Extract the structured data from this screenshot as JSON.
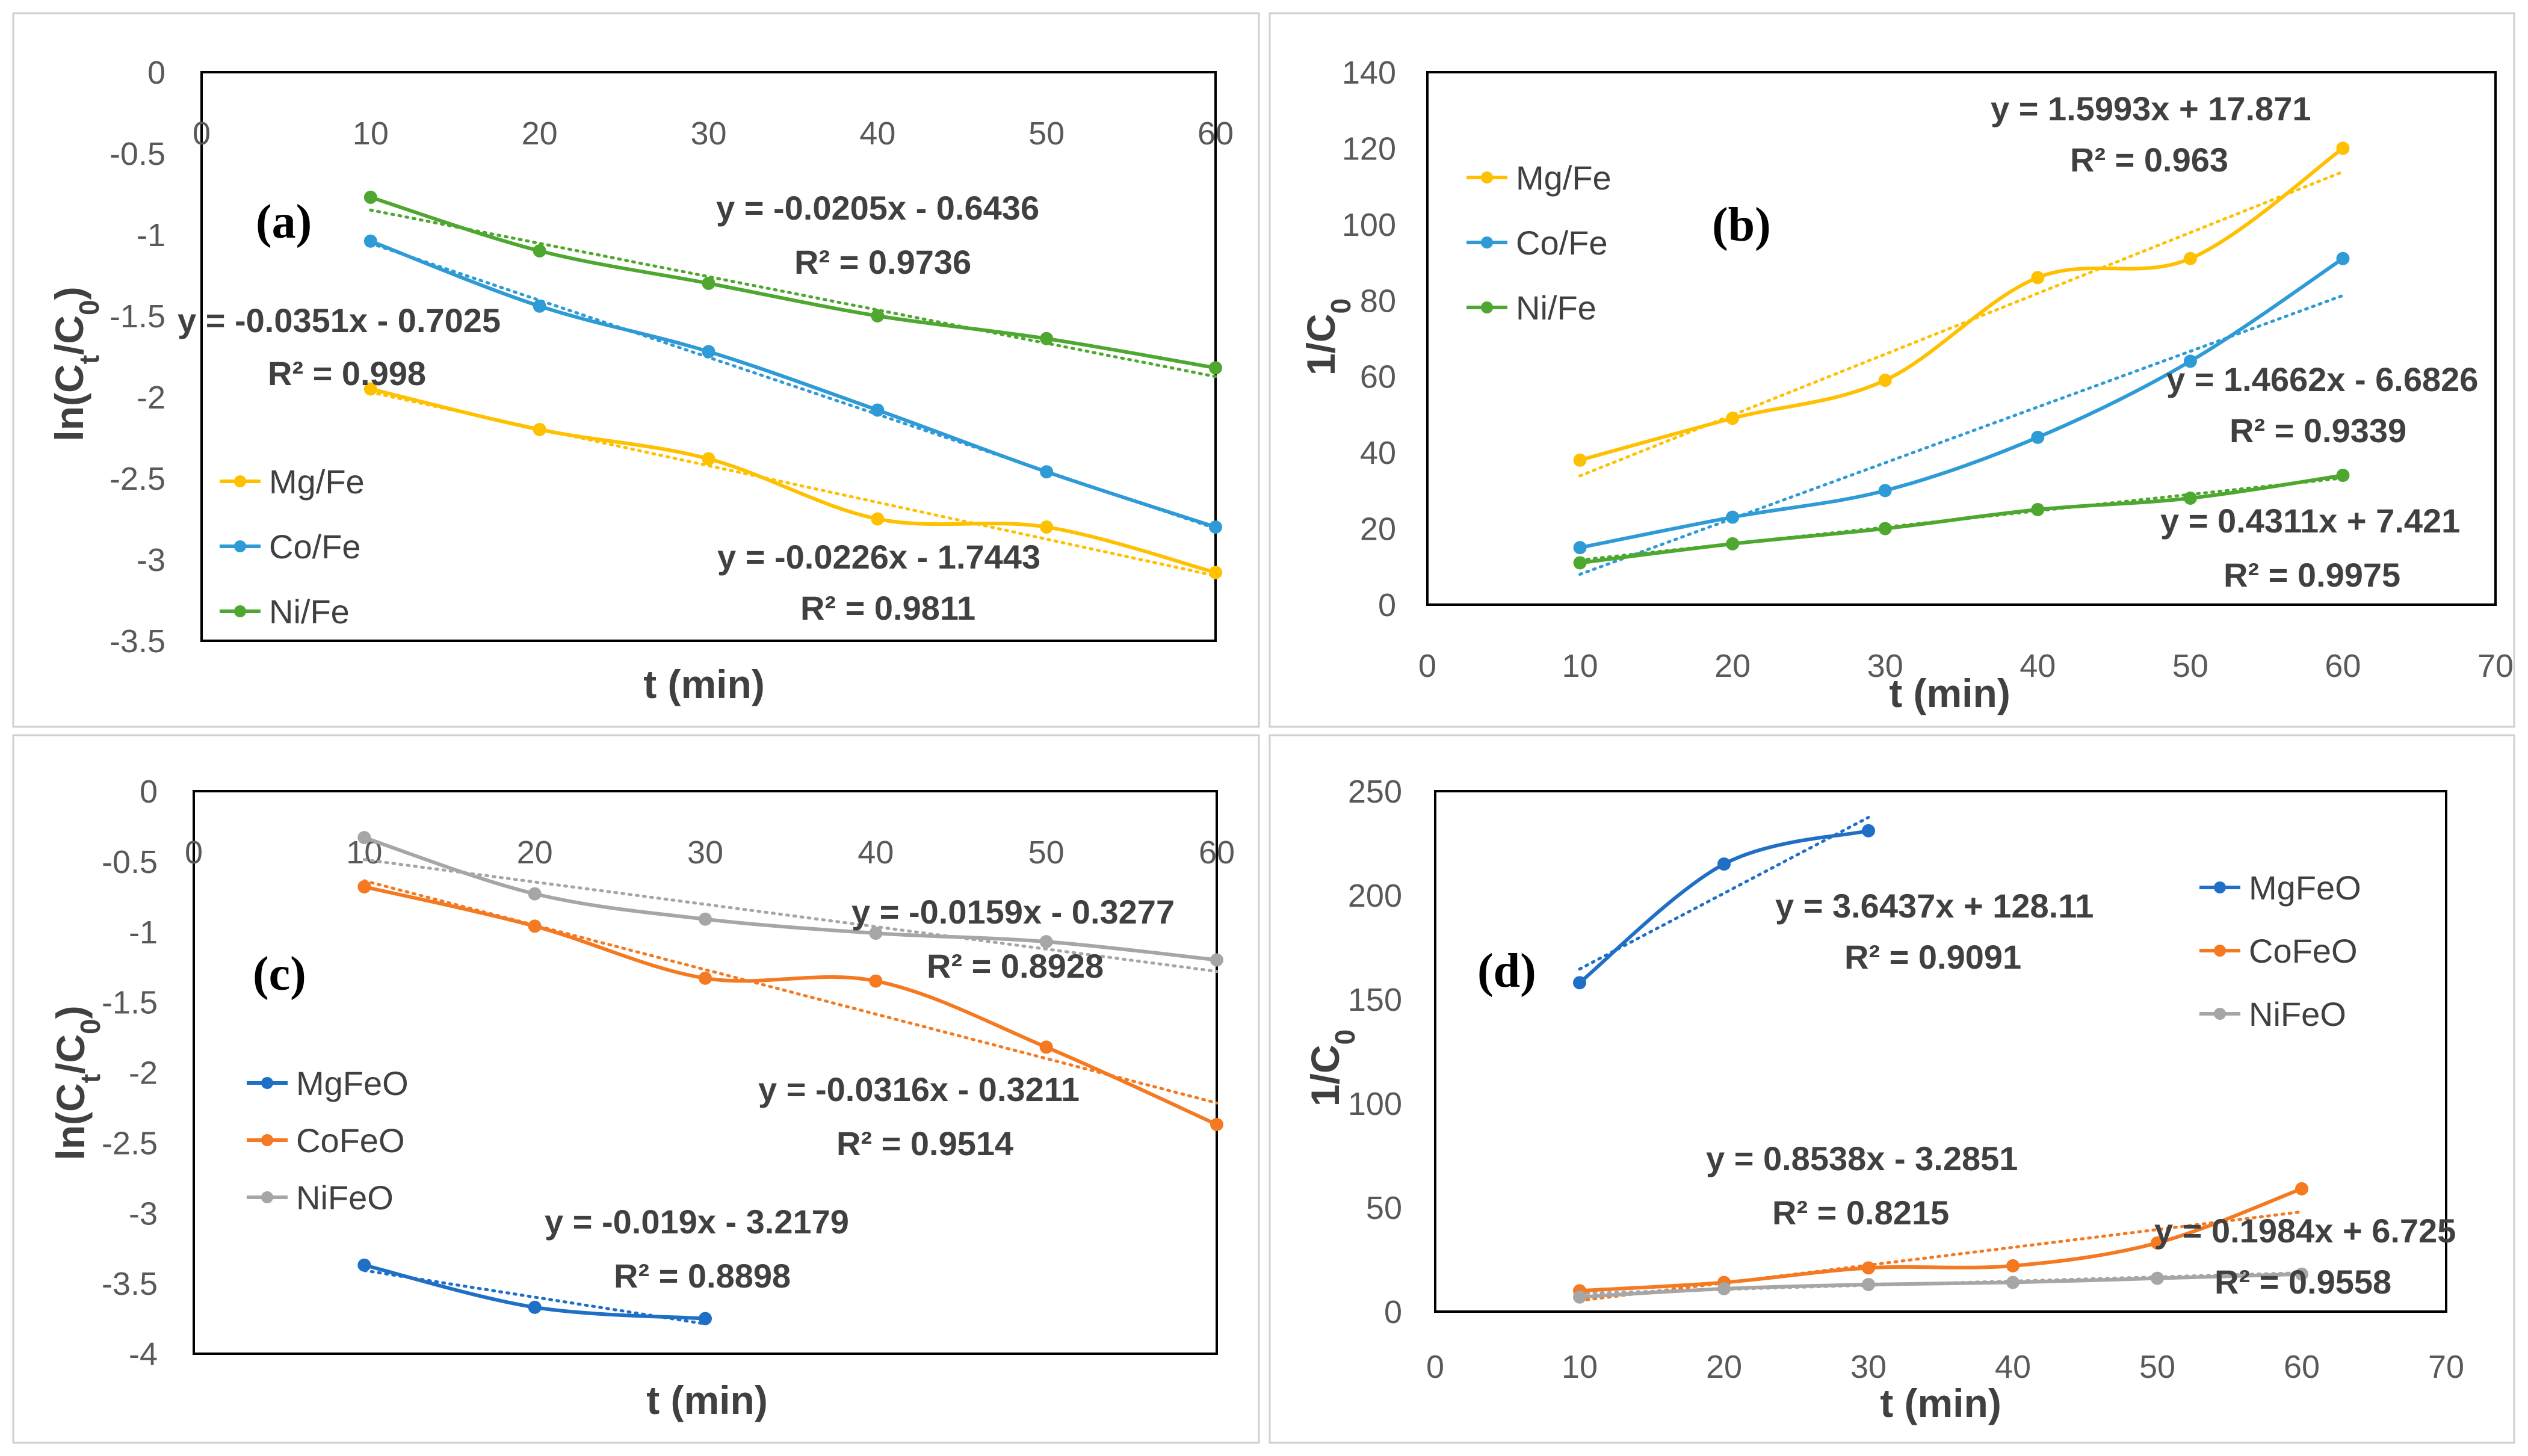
{
  "chart_data": [
    {
      "id": "a",
      "type": "line",
      "panel_label": "(a)",
      "xlabel": "t (min)",
      "ylabel": "ln(C",
      "ylabel_sub1": "t",
      "ylabel_mid": "/C",
      "ylabel_sub2": "0",
      "ylabel_end": ")",
      "xlim": [
        0,
        60
      ],
      "ylim": [
        -3.5,
        0
      ],
      "x_axis_at_top": true,
      "legend_position": "bottom-left",
      "x_ticks": [
        "0",
        "10",
        "20",
        "30",
        "40",
        "50",
        "60"
      ],
      "x_tick_values": [
        0,
        10,
        20,
        30,
        40,
        50,
        60
      ],
      "y_ticks": [
        "0",
        "-0.5",
        "-1",
        "-1.5",
        "-2",
        "-2.5",
        "-3",
        "-3.5"
      ],
      "y_tick_values": [
        0,
        -0.5,
        -1,
        -1.5,
        -2,
        -2.5,
        -3,
        -3.5
      ],
      "series": [
        {
          "name": "Mg/Fe",
          "color": "#FFC000",
          "x": [
            10,
            20,
            30,
            40,
            50,
            60
          ],
          "values": [
            -1.95,
            -2.2,
            -2.38,
            -2.75,
            -2.8,
            -3.08
          ],
          "fit": {
            "slope": -0.0226,
            "intercept": -1.7443
          }
        },
        {
          "name": "Co/Fe",
          "color": "#2E9BD6",
          "x": [
            10,
            20,
            30,
            40,
            50,
            60
          ],
          "values": [
            -1.04,
            -1.44,
            -1.72,
            -2.08,
            -2.46,
            -2.8
          ],
          "fit": {
            "slope": -0.0351,
            "intercept": -0.7025
          }
        },
        {
          "name": "Ni/Fe",
          "color": "#4EA72E",
          "x": [
            10,
            20,
            30,
            40,
            50,
            60
          ],
          "values": [
            -0.77,
            -1.1,
            -1.3,
            -1.5,
            -1.64,
            -1.82
          ],
          "fit": {
            "slope": -0.0205,
            "intercept": -0.6436
          }
        }
      ],
      "annotations": [
        {
          "eq": "y = -0.0205x - 0.6436",
          "r2": "R² = 0.9736"
        },
        {
          "eq": "y = -0.0351x - 0.7025",
          "r2": "R² = 0.998"
        },
        {
          "eq": "y = -0.0226x - 1.7443",
          "r2": "R² = 0.9811"
        }
      ]
    },
    {
      "id": "b",
      "type": "line",
      "panel_label": "(b)",
      "xlabel": "t (min)",
      "ylabel": "1/C",
      "ylabel_sub": "0",
      "xlim": [
        0,
        70
      ],
      "ylim": [
        0,
        140
      ],
      "x_axis_at_top": false,
      "legend_position": "top-left",
      "x_ticks": [
        "0",
        "10",
        "20",
        "30",
        "40",
        "50",
        "60",
        "70"
      ],
      "x_tick_values": [
        0,
        10,
        20,
        30,
        40,
        50,
        60,
        70
      ],
      "y_ticks": [
        "0",
        "20",
        "40",
        "60",
        "80",
        "100",
        "120",
        "140"
      ],
      "y_tick_values": [
        0,
        20,
        40,
        60,
        80,
        100,
        120,
        140
      ],
      "series": [
        {
          "name": "Mg/Fe",
          "color": "#FFC000",
          "x": [
            10,
            20,
            30,
            40,
            50,
            60
          ],
          "values": [
            38,
            49,
            59,
            86,
            91,
            120
          ],
          "fit": {
            "slope": 1.5993,
            "intercept": 17.871
          }
        },
        {
          "name": "Co/Fe",
          "color": "#2E9BD6",
          "x": [
            10,
            20,
            30,
            40,
            50,
            60
          ],
          "values": [
            15,
            23,
            30,
            44,
            64,
            91
          ],
          "fit": {
            "slope": 1.4662,
            "intercept": -6.6826
          }
        },
        {
          "name": "Ni/Fe",
          "color": "#4EA72E",
          "x": [
            10,
            20,
            30,
            40,
            50,
            60
          ],
          "values": [
            11,
            16,
            20,
            25,
            28,
            34
          ],
          "fit": {
            "slope": 0.4311,
            "intercept": 7.421
          }
        }
      ],
      "annotations": [
        {
          "eq": "y = 1.5993x + 17.871",
          "r2": "R² = 0.963"
        },
        {
          "eq": "y = 1.4662x - 6.6826",
          "r2": "R² = 0.9339"
        },
        {
          "eq": "y = 0.4311x + 7.421",
          "r2": "R² = 0.9975"
        }
      ]
    },
    {
      "id": "c",
      "type": "line",
      "panel_label": "(c)",
      "xlabel": "t (min)",
      "ylabel": "ln(C",
      "ylabel_sub1": "t",
      "ylabel_mid": "/C",
      "ylabel_sub2": "0",
      "ylabel_end": ")",
      "xlim": [
        0,
        60
      ],
      "ylim": [
        -4,
        0
      ],
      "x_axis_at_top": true,
      "legend_position": "left",
      "x_ticks": [
        "0",
        "10",
        "20",
        "30",
        "40",
        "50",
        "60"
      ],
      "x_tick_values": [
        0,
        10,
        20,
        30,
        40,
        50,
        60
      ],
      "y_ticks": [
        "0",
        "-0.5",
        "-1",
        "-1.5",
        "-2",
        "-2.5",
        "-3",
        "-3.5",
        "-4"
      ],
      "y_tick_values": [
        0,
        -0.5,
        -1,
        -1.5,
        -2,
        -2.5,
        -3,
        -3.5,
        -4
      ],
      "series": [
        {
          "name": "MgFeO",
          "color": "#1F6FC6",
          "x": [
            10,
            20,
            30
          ],
          "values": [
            -3.37,
            -3.67,
            -3.75
          ],
          "fit": {
            "slope": -0.019,
            "intercept": -3.2179
          }
        },
        {
          "name": "CoFeO",
          "color": "#F47920",
          "x": [
            10,
            20,
            30,
            40,
            50,
            60
          ],
          "values": [
            -0.68,
            -0.96,
            -1.33,
            -1.35,
            -1.82,
            -2.37
          ],
          "fit": {
            "slope": -0.0316,
            "intercept": -0.3211
          }
        },
        {
          "name": "NiFeO",
          "color": "#A6A6A6",
          "x": [
            10,
            20,
            30,
            40,
            50,
            60
          ],
          "values": [
            -0.33,
            -0.73,
            -0.91,
            -1.01,
            -1.07,
            -1.2
          ],
          "fit": {
            "slope": -0.0159,
            "intercept": -0.3277
          }
        }
      ],
      "annotations": [
        {
          "eq": "y = -0.0159x - 0.3277",
          "r2": "R² = 0.8928"
        },
        {
          "eq": "y = -0.0316x - 0.3211",
          "r2": "R² = 0.9514"
        },
        {
          "eq": "y = -0.019x - 3.2179",
          "r2": "R² = 0.8898"
        }
      ]
    },
    {
      "id": "d",
      "type": "line",
      "panel_label": "(d)",
      "xlabel": "t (min)",
      "ylabel": "1/C",
      "ylabel_sub": "0",
      "xlim": [
        0,
        70
      ],
      "ylim": [
        0,
        250
      ],
      "x_axis_at_top": false,
      "legend_position": "top-right",
      "x_ticks": [
        "0",
        "10",
        "20",
        "30",
        "40",
        "50",
        "60",
        "70"
      ],
      "x_tick_values": [
        0,
        10,
        20,
        30,
        40,
        50,
        60,
        70
      ],
      "y_ticks": [
        "0",
        "50",
        "100",
        "150",
        "200",
        "250"
      ],
      "y_tick_values": [
        0,
        50,
        100,
        150,
        200,
        250
      ],
      "series": [
        {
          "name": "MgFeO",
          "color": "#1F6FC6",
          "x": [
            10,
            20,
            30
          ],
          "values": [
            158,
            215,
            231
          ],
          "fit": {
            "slope": 3.6437,
            "intercept": 128.11
          }
        },
        {
          "name": "CoFeO",
          "color": "#F47920",
          "x": [
            10,
            20,
            30,
            40,
            50,
            60
          ],
          "values": [
            10,
            14,
            21,
            22,
            33,
            59
          ],
          "fit": {
            "slope": 0.8538,
            "intercept": -3.2851
          }
        },
        {
          "name": "NiFeO",
          "color": "#A6A6A6",
          "x": [
            10,
            20,
            30,
            40,
            50,
            60
          ],
          "values": [
            7,
            11,
            13,
            14,
            16,
            18
          ],
          "fit": {
            "slope": 0.1984,
            "intercept": 6.725
          }
        }
      ],
      "annotations": [
        {
          "eq": "y = 3.6437x + 128.11",
          "r2": "R² = 0.9091"
        },
        {
          "eq": "y = 0.8538x - 3.2851",
          "r2": "R² = 0.8215"
        },
        {
          "eq": "y = 0.1984x + 6.725",
          "r2": "R² = 0.9558"
        }
      ]
    }
  ]
}
